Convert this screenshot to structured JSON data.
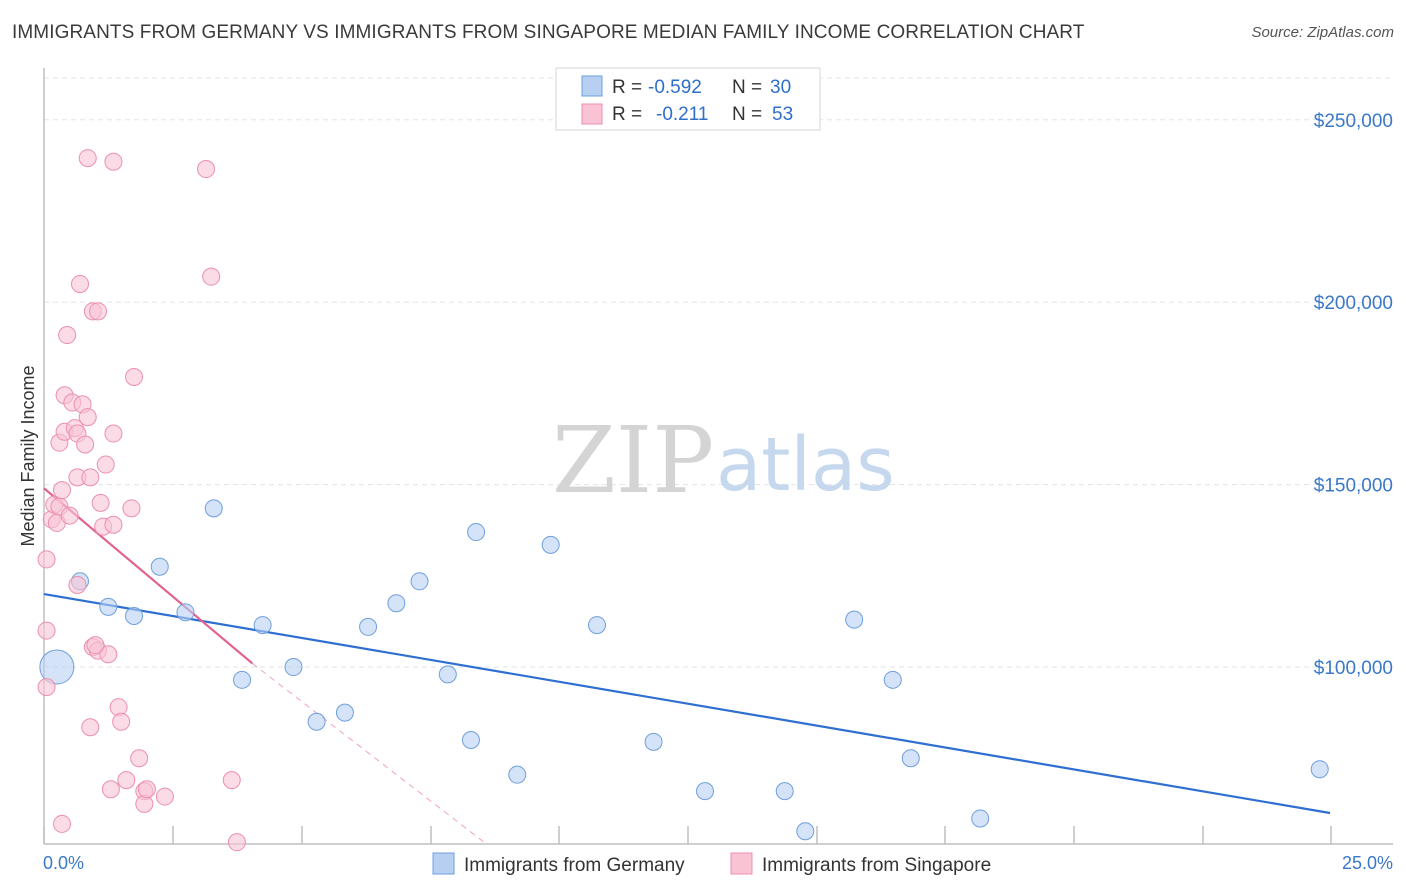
{
  "title": "IMMIGRANTS FROM GERMANY VS IMMIGRANTS FROM SINGAPORE MEDIAN FAMILY INCOME CORRELATION CHART",
  "source": "Source: ZipAtlas.com",
  "watermark": {
    "zip": "ZIP",
    "atlas": "atlas"
  },
  "colors": {
    "germany_fill": "#b7d0f2",
    "germany_stroke": "#6e9fdd",
    "germany_line": "#2f6fd1",
    "singapore_fill": "#f9c3d4",
    "singapore_stroke": "#ec8fae",
    "singapore_line": "#e2648e",
    "grid": "#e3e3e3",
    "axis": "#bfbfbf",
    "tick_text": "#3a78c8"
  },
  "legend": {
    "rows": [
      {
        "r_label": "R =",
        "r_value": "-0.592",
        "n_label": "N =",
        "n_value": "30"
      },
      {
        "r_label": "R =",
        "r_value": "-0.211",
        "n_label": "N =",
        "n_value": "53"
      }
    ]
  },
  "chart_data": {
    "type": "scatter",
    "title": "IMMIGRANTS FROM GERMANY VS IMMIGRANTS FROM SINGAPORE MEDIAN FAMILY INCOME CORRELATION CHART",
    "xlabel": "",
    "ylabel": "Median Family Income",
    "x_tick_labels": [
      "0.0%",
      "25.0%"
    ],
    "y_ticks": [
      100000,
      150000,
      200000,
      250000
    ],
    "y_tick_labels": [
      "$100,000",
      "$150,000",
      "$200,000",
      "$250,000"
    ],
    "xlim": [
      0,
      25
    ],
    "ylim": [
      51500,
      262000
    ],
    "grid": true,
    "series": [
      {
        "name": "Immigrants from Germany",
        "color": "#b7d0f2",
        "points": [
          {
            "x": 0.25,
            "y": 100000,
            "big": true
          },
          {
            "x": 0.7,
            "y": 123500
          },
          {
            "x": 1.25,
            "y": 116500
          },
          {
            "x": 1.75,
            "y": 114000
          },
          {
            "x": 2.25,
            "y": 127500
          },
          {
            "x": 2.75,
            "y": 115000
          },
          {
            "x": 3.3,
            "y": 143500
          },
          {
            "x": 3.85,
            "y": 96500
          },
          {
            "x": 4.25,
            "y": 111500
          },
          {
            "x": 4.85,
            "y": 100000
          },
          {
            "x": 5.3,
            "y": 85000
          },
          {
            "x": 5.85,
            "y": 87500
          },
          {
            "x": 6.3,
            "y": 111000
          },
          {
            "x": 6.85,
            "y": 117500
          },
          {
            "x": 7.3,
            "y": 123500
          },
          {
            "x": 7.85,
            "y": 98000
          },
          {
            "x": 8.3,
            "y": 80000
          },
          {
            "x": 8.4,
            "y": 137000
          },
          {
            "x": 9.2,
            "y": 70500
          },
          {
            "x": 9.85,
            "y": 133500
          },
          {
            "x": 10.75,
            "y": 111500
          },
          {
            "x": 11.85,
            "y": 79500
          },
          {
            "x": 12.85,
            "y": 66000
          },
          {
            "x": 14.4,
            "y": 66000
          },
          {
            "x": 14.8,
            "y": 55000
          },
          {
            "x": 15.75,
            "y": 113000
          },
          {
            "x": 16.5,
            "y": 96500
          },
          {
            "x": 16.85,
            "y": 75000
          },
          {
            "x": 18.2,
            "y": 58500
          },
          {
            "x": 24.8,
            "y": 72000
          }
        ],
        "trend": {
          "x": [
            0,
            25
          ],
          "y": [
            120000,
            60000
          ]
        }
      },
      {
        "name": "Immigrants from Singapore",
        "color": "#f9c3d4",
        "points": [
          {
            "x": 0.05,
            "y": 129500
          },
          {
            "x": 0.05,
            "y": 110000
          },
          {
            "x": 0.05,
            "y": 94500
          },
          {
            "x": 0.15,
            "y": 140500
          },
          {
            "x": 0.2,
            "y": 144500
          },
          {
            "x": 0.25,
            "y": 139500
          },
          {
            "x": 0.3,
            "y": 161500
          },
          {
            "x": 0.3,
            "y": 144000
          },
          {
            "x": 0.35,
            "y": 148500
          },
          {
            "x": 0.35,
            "y": 57000
          },
          {
            "x": 0.4,
            "y": 174500
          },
          {
            "x": 0.4,
            "y": 164500
          },
          {
            "x": 0.45,
            "y": 191000
          },
          {
            "x": 0.5,
            "y": 141500
          },
          {
            "x": 0.55,
            "y": 172500
          },
          {
            "x": 0.6,
            "y": 165500
          },
          {
            "x": 0.65,
            "y": 164000
          },
          {
            "x": 0.65,
            "y": 152000
          },
          {
            "x": 0.65,
            "y": 122500
          },
          {
            "x": 0.7,
            "y": 205000
          },
          {
            "x": 0.75,
            "y": 172000
          },
          {
            "x": 0.8,
            "y": 161000
          },
          {
            "x": 0.85,
            "y": 239500
          },
          {
            "x": 0.85,
            "y": 168500
          },
          {
            "x": 0.9,
            "y": 152000
          },
          {
            "x": 0.9,
            "y": 83500
          },
          {
            "x": 0.95,
            "y": 197500
          },
          {
            "x": 0.95,
            "y": 105500
          },
          {
            "x": 1.05,
            "y": 197500
          },
          {
            "x": 1.05,
            "y": 104500
          },
          {
            "x": 1.1,
            "y": 145000
          },
          {
            "x": 1.15,
            "y": 138500
          },
          {
            "x": 1.2,
            "y": 155500
          },
          {
            "x": 1.25,
            "y": 103500
          },
          {
            "x": 1.3,
            "y": 66500
          },
          {
            "x": 1.35,
            "y": 238500
          },
          {
            "x": 1.35,
            "y": 164000
          },
          {
            "x": 1.35,
            "y": 139000
          },
          {
            "x": 1.45,
            "y": 89000
          },
          {
            "x": 1.5,
            "y": 85000
          },
          {
            "x": 1.6,
            "y": 69000
          },
          {
            "x": 1.7,
            "y": 143500
          },
          {
            "x": 1.75,
            "y": 179500
          },
          {
            "x": 1.85,
            "y": 75000
          },
          {
            "x": 1.95,
            "y": 66000
          },
          {
            "x": 1.95,
            "y": 62500
          },
          {
            "x": 2.0,
            "y": 66500
          },
          {
            "x": 2.35,
            "y": 64500
          },
          {
            "x": 3.15,
            "y": 236500
          },
          {
            "x": 3.25,
            "y": 207000
          },
          {
            "x": 3.65,
            "y": 69000
          },
          {
            "x": 3.75,
            "y": 52000
          },
          {
            "x": 1.0,
            "y": 106000
          }
        ],
        "trend": {
          "x": [
            0,
            4.05
          ],
          "y": [
            149000,
            101000
          ]
        },
        "trend_extension": {
          "x": [
            4.05,
            8.6
          ],
          "y": [
            101000,
            47000
          ]
        }
      }
    ],
    "legend_entries": [
      "Immigrants from Germany",
      "Immigrants from Singapore"
    ],
    "legend_position": "top-center"
  }
}
